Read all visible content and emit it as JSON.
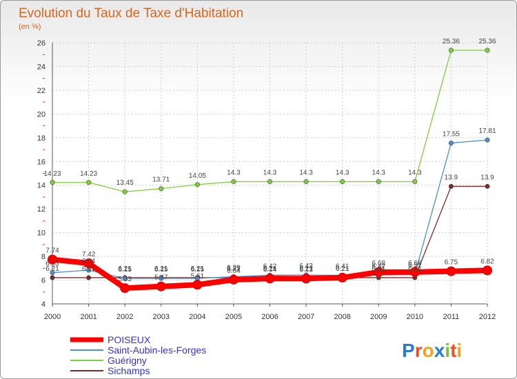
{
  "title": "Evolution du Taux de Taxe d'Habitation",
  "subtitle": "(en %)",
  "logo": {
    "text": "Proxiti",
    "colors": [
      "#2a7ad5",
      "#e8502a",
      "#f2a21b",
      "#2a7ad5",
      "#7bc142",
      "#e8502a",
      "#f2a21b"
    ]
  },
  "chart_data": {
    "type": "line",
    "x": [
      "2000",
      "2001",
      "2002",
      "2003",
      "2004",
      "2005",
      "2006",
      "2007",
      "2008",
      "2009",
      "2010",
      "2011",
      "2012"
    ],
    "ylim": [
      4,
      26
    ],
    "yticks": [
      "4",
      "6",
      "8",
      "10",
      "12",
      "14",
      "16",
      "18",
      "20",
      "22",
      "24",
      "26"
    ],
    "grid": true,
    "legend_position": "bottom-left",
    "series": [
      {
        "name": "POISEUX",
        "color": "#ff0000",
        "values": [
          7.74,
          7.42,
          5.33,
          5.47,
          5.61,
          6.04,
          6.14,
          6.13,
          6.21,
          6.68,
          6.68,
          6.75,
          6.82
        ],
        "labels": [
          "7.74",
          "7.42",
          "5.33",
          "5.47",
          "5.61",
          "6.04",
          "6.14",
          "6.13",
          "6.21",
          "6.68",
          "6.68",
          "6.75",
          "6.82"
        ]
      },
      {
        "name": "Saint-Aubin-les-Forges",
        "color": "#4a8fd0",
        "values": [
          6.63,
          6.84,
          6.15,
          6.15,
          6.15,
          6.29,
          6.42,
          6.43,
          6.41,
          6.42,
          6.51,
          17.55,
          17.81
        ],
        "labels": [
          "6.63",
          "6.84",
          "6.15",
          "6.15",
          "6.15",
          "6.29",
          "6.42",
          "6.43",
          "6.41",
          "6.42",
          "6.51",
          "17.55",
          "17.81"
        ]
      },
      {
        "name": "Guérigny",
        "color": "#7fcf3a",
        "values": [
          14.23,
          14.23,
          13.45,
          13.71,
          14.05,
          14.3,
          14.3,
          14.3,
          14.3,
          14.3,
          14.3,
          25.36,
          25.36
        ],
        "labels": [
          "14.23",
          "14.23",
          "13.45",
          "13.71",
          "14.05",
          "14.3",
          "14.3",
          "14.3",
          "14.3",
          "14.3",
          "14.3",
          "25.36",
          "25.36"
        ]
      },
      {
        "name": "Sichamps",
        "color": "#7a2a2a",
        "values": [
          6.21,
          6.21,
          6.21,
          6.21,
          6.21,
          6.21,
          6.21,
          6.21,
          6.21,
          6.21,
          6.21,
          13.9,
          13.9
        ],
        "labels": [
          "6.21",
          "6.21",
          "6.21",
          "6.21",
          "6.21",
          "6.21",
          "6.21",
          "6.21",
          "6.21",
          "6.21",
          "6.21",
          "13.9",
          "13.9"
        ]
      }
    ]
  }
}
